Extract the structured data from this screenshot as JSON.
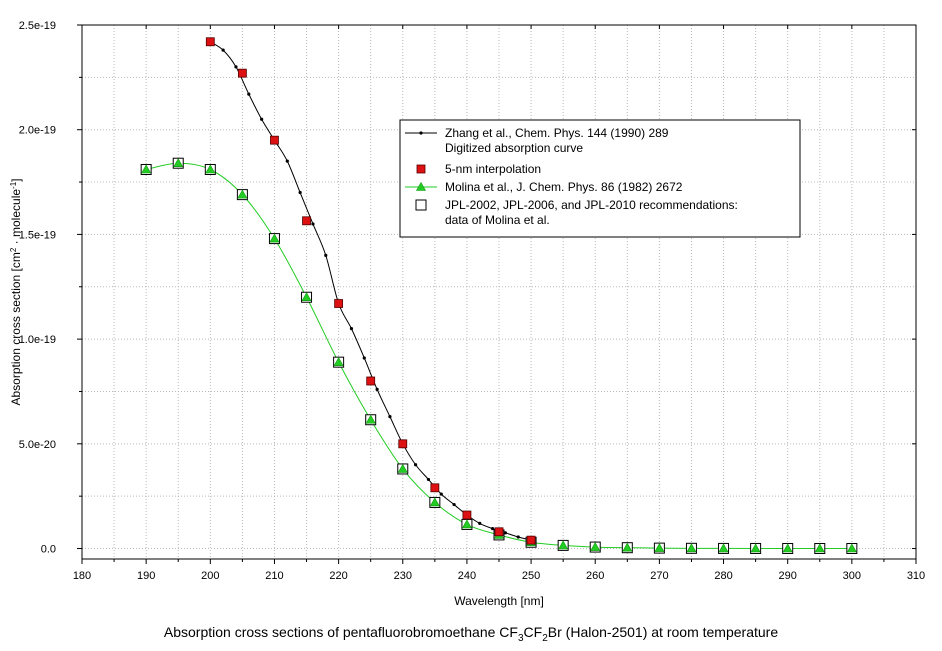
{
  "caption": {
    "prefix": "Absorption cross sections of pentafluorobromoethane CF",
    "sub1": "3",
    "mid1": "CF",
    "sub2": "2",
    "suffix": "Br (Halon-2501) at room temperature"
  },
  "chart_data": {
    "type": "line",
    "xlabel": "Wavelength [nm]",
    "ylabel": "Absorption cross section [cm² · molecule⁻¹]",
    "xlim": [
      180,
      310
    ],
    "ylim": [
      -5e-21,
      2.5e-19
    ],
    "x_ticks": [
      180,
      190,
      200,
      210,
      220,
      230,
      240,
      250,
      260,
      270,
      280,
      290,
      300,
      310
    ],
    "y_ticks": [
      0,
      5e-20,
      1e-19,
      1.5e-19,
      2e-19,
      2.5e-19
    ],
    "y_tick_labels": [
      "0.0",
      "5.0e-20",
      "1.0e-19",
      "1.5e-19",
      "2.0e-19",
      "2.5e-19"
    ],
    "grid": true,
    "legend_position": "upper-right",
    "series": [
      {
        "name": "Zhang et al., Chem. Phys. 144 (1990) 289",
        "name_line2": "Digitized absorption curve",
        "style": "line-dots",
        "color": "#000000",
        "x": [
          200,
          202,
          204,
          206,
          208,
          210,
          212,
          214,
          216,
          218,
          220,
          222,
          224,
          226,
          228,
          230,
          232,
          234,
          236,
          238,
          240,
          242,
          244,
          246,
          248,
          250
        ],
        "y": [
          2.42e-19,
          2.38e-19,
          2.3e-19,
          2.17e-19,
          2.05e-19,
          1.95e-19,
          1.85e-19,
          1.7e-19,
          1.55e-19,
          1.4e-19,
          1.17e-19,
          1.05e-19,
          9.1e-20,
          7.6e-20,
          6.3e-20,
          5e-20,
          4e-20,
          3.3e-20,
          2.6e-20,
          2.1e-20,
          1.6e-20,
          1.2e-20,
          9.5e-21,
          7.5e-21,
          5.5e-21,
          4e-21
        ]
      },
      {
        "name": "5-nm interpolation",
        "style": "square-marker",
        "color": "#dd1111",
        "x": [
          200,
          205,
          210,
          215,
          220,
          225,
          230,
          235,
          240,
          245,
          250
        ],
        "y": [
          2.42e-19,
          2.27e-19,
          1.95e-19,
          1.565e-19,
          1.17e-19,
          8e-20,
          5e-20,
          2.9e-20,
          1.6e-20,
          8e-21,
          4e-21
        ]
      },
      {
        "name": "Molina et al., J. Chem. Phys. 86 (1982) 2672",
        "style": "line-triangle",
        "color": "#22cc22",
        "x": [
          190,
          195,
          200,
          205,
          210,
          215,
          220,
          225,
          230,
          235,
          240,
          245,
          250,
          255,
          260,
          265,
          270,
          275,
          280,
          285,
          290,
          295,
          300
        ],
        "y": [
          1.81e-19,
          1.84e-19,
          1.81e-19,
          1.69e-19,
          1.48e-19,
          1.2e-19,
          8.9e-20,
          6.15e-20,
          3.8e-20,
          2.2e-20,
          1.15e-20,
          6.5e-21,
          3e-21,
          1.5e-21,
          7e-22,
          4e-22,
          2e-22,
          1e-22,
          5e-23,
          3e-23,
          2e-23,
          1e-23,
          1e-23
        ]
      },
      {
        "name": "JPL-2002, JPL-2006, and JPL-2010 recommendations:",
        "name_line2": "data of Molina et al.",
        "style": "open-square",
        "color": "#000000",
        "x": [
          190,
          195,
          200,
          205,
          210,
          215,
          220,
          225,
          230,
          235,
          240,
          245,
          250,
          255,
          260,
          265,
          270,
          275,
          280,
          285,
          290,
          295,
          300
        ],
        "y": [
          1.81e-19,
          1.84e-19,
          1.81e-19,
          1.69e-19,
          1.48e-19,
          1.2e-19,
          8.9e-20,
          6.15e-20,
          3.8e-20,
          2.2e-20,
          1.15e-20,
          6.5e-21,
          3e-21,
          1.5e-21,
          7e-22,
          4e-22,
          2e-22,
          1e-22,
          5e-23,
          3e-23,
          2e-23,
          1e-23,
          1e-23
        ]
      }
    ]
  }
}
